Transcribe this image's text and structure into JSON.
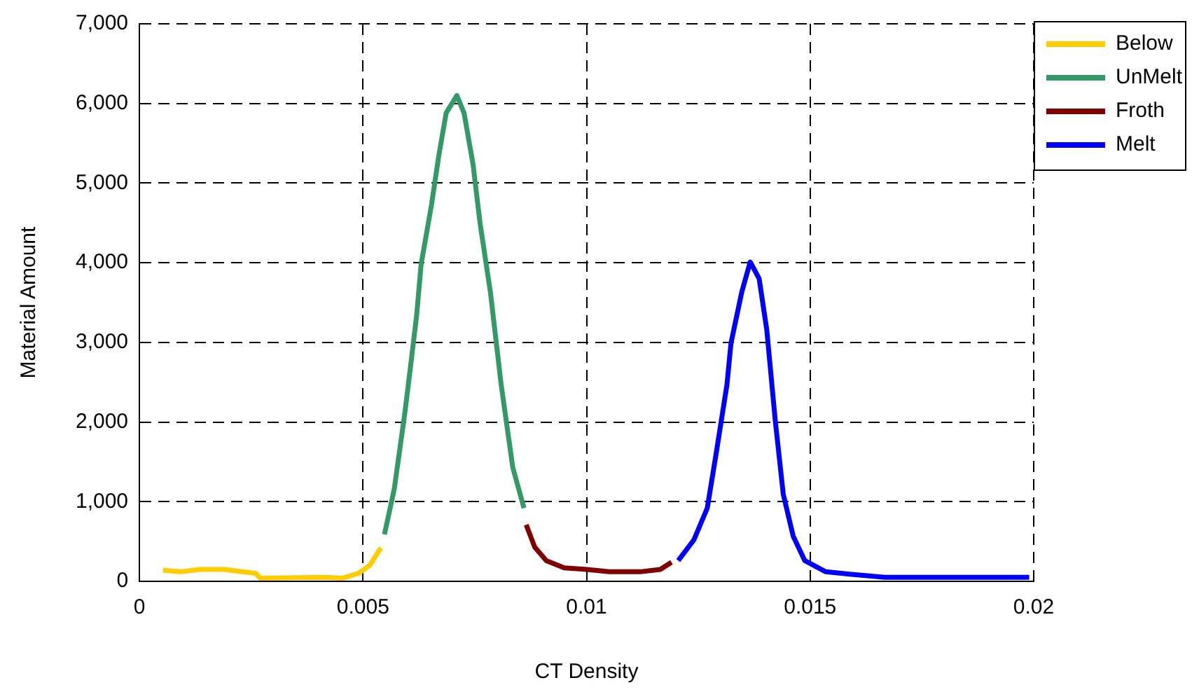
{
  "chart_data": {
    "type": "line",
    "xlabel": "CT Density",
    "ylabel": "Material Amount",
    "xlim": [
      0,
      0.02
    ],
    "xticks": [
      0,
      0.005,
      0.01,
      0.015,
      0.02
    ],
    "ylim": [
      0,
      7000
    ],
    "yticks": [
      0,
      {
        "value": 1000,
        "label": "1,000"
      },
      {
        "value": 2000,
        "label": "2,000"
      },
      {
        "value": 3000,
        "label": "3,000"
      },
      {
        "value": 4000,
        "label": "4,000"
      },
      {
        "value": 5000,
        "label": "5,000"
      },
      {
        "value": 6000,
        "label": "6,000"
      },
      {
        "value": 7000,
        "label": "7,000"
      }
    ],
    "grid": true,
    "legend": "right",
    "marker": "none",
    "line_style": "solid",
    "series": [
      {
        "name": "Below",
        "color": "#ffcc00",
        "x": [
          0.00053,
          0.00092,
          0.00135,
          0.0019,
          0.0026,
          0.0027,
          0.0041,
          0.00455,
          0.0049,
          0.00515,
          0.0054
        ],
        "values": [
          140,
          120,
          150,
          150,
          100,
          40,
          50,
          40,
          100,
          200,
          420
        ]
      },
      {
        "name": "UnMelt",
        "color": "#339966",
        "x": [
          0.00548,
          0.0057,
          0.00594,
          0.00604,
          0.0062,
          0.0063,
          0.00653,
          0.0067,
          0.00686,
          0.0071,
          0.00726,
          0.00746,
          0.00762,
          0.00785,
          0.00809,
          0.00835,
          0.0086
        ],
        "values": [
          590,
          1160,
          2130,
          2590,
          3340,
          3980,
          4720,
          5360,
          5880,
          6100,
          5880,
          5240,
          4490,
          3630,
          2470,
          1430,
          920
        ]
      },
      {
        "name": "Froth",
        "color": "#800000",
        "x": [
          0.00865,
          0.00884,
          0.0091,
          0.0095,
          0.01,
          0.0105,
          0.0112,
          0.01165,
          0.0119
        ],
        "values": [
          710,
          430,
          260,
          170,
          150,
          120,
          120,
          150,
          240
        ]
      },
      {
        "name": "Melt",
        "color": "#0000ff",
        "x": [
          0.01205,
          0.0124,
          0.0127,
          0.0129,
          0.01314,
          0.01323,
          0.01347,
          0.01366,
          0.01386,
          0.01403,
          0.01422,
          0.0144,
          0.01462,
          0.01488,
          0.01535,
          0.01588,
          0.01667,
          0.0199
        ],
        "values": [
          260,
          520,
          920,
          1610,
          2470,
          2990,
          3630,
          4010,
          3800,
          3160,
          2020,
          1090,
          570,
          260,
          120,
          90,
          50,
          50
        ]
      }
    ]
  }
}
